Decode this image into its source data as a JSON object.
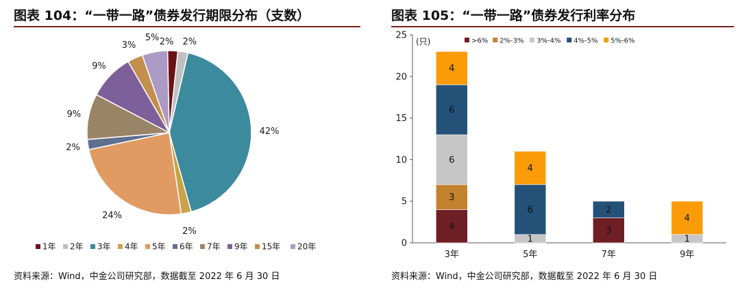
{
  "left": {
    "title": "图表 104：“一带一路”债券发行期限分布（支数）",
    "source": "资料来源：Wind，中金公司研究部，数据截至 2022 年 6 月 30 日"
  },
  "right": {
    "title": "图表 105：“一带一路”债券发行利率分布",
    "source": "资料来源：Wind，中金公司研究部，数据截至 2022 年 6 月 30 日"
  },
  "chart_data": [
    {
      "type": "pie",
      "title": "",
      "legend_position": "bottom",
      "slices": [
        {
          "name": "1年",
          "value": 2,
          "label": "2%",
          "color": "#6b1218"
        },
        {
          "name": "2年",
          "value": 2,
          "label": "2%",
          "color": "#c0c0c0"
        },
        {
          "name": "3年",
          "value": 42,
          "label": "42%",
          "color": "#3c8a9e"
        },
        {
          "name": "4年",
          "value": 2,
          "label": "2%",
          "color": "#c9a24a"
        },
        {
          "name": "5年",
          "value": 24,
          "label": "24%",
          "color": "#e09a62"
        },
        {
          "name": "6年",
          "value": 2,
          "label": "2%",
          "color": "#5f6f8e"
        },
        {
          "name": "7年",
          "value": 9,
          "label": "9%",
          "color": "#9a8468"
        },
        {
          "name": "9年",
          "value": 9,
          "label": "9%",
          "color": "#7d5f99"
        },
        {
          "name": "15年",
          "value": 3,
          "label": "3%",
          "color": "#c28f4f"
        },
        {
          "name": "20年",
          "value": 5,
          "label": "5%",
          "color": "#ab9bc4"
        }
      ]
    },
    {
      "type": "bar",
      "stacked": true,
      "title": "",
      "unit_label": "(只)",
      "categories": [
        "3年",
        "5年",
        "7年",
        "9年"
      ],
      "ylim": [
        0,
        25
      ],
      "yticks": [
        0,
        5,
        10,
        15,
        20,
        25
      ],
      "legend_position": "top-left",
      "grid": false,
      "series": [
        {
          "name": ">6%",
          "color": "#6e1f24",
          "values": [
            4,
            0,
            3,
            0
          ]
        },
        {
          "name": "2%-3%",
          "color": "#c3822e",
          "values": [
            3,
            0,
            0,
            0
          ]
        },
        {
          "name": "3%-4%",
          "color": "#c6c6c6",
          "values": [
            6,
            1,
            0,
            1
          ]
        },
        {
          "name": "4%-5%",
          "color": "#245178",
          "values": [
            6,
            6,
            2,
            0
          ]
        },
        {
          "name": "5%-6%",
          "color": "#fb9b08",
          "values": [
            4,
            4,
            0,
            4
          ]
        }
      ]
    }
  ]
}
